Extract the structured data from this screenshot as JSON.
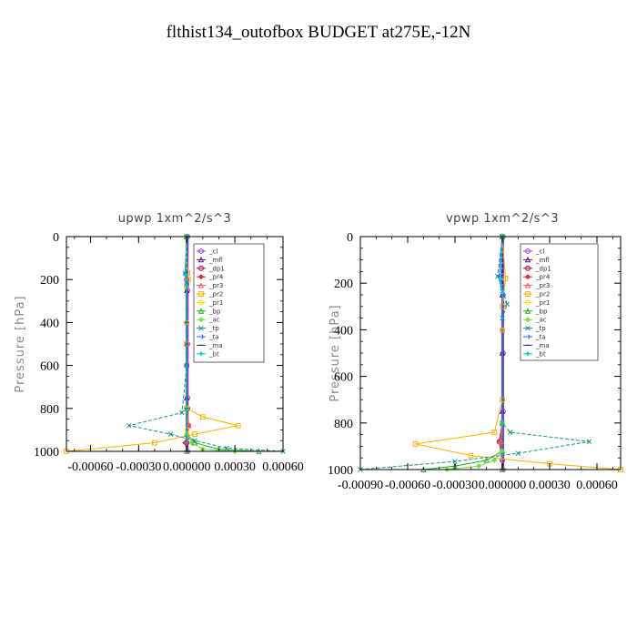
{
  "title": "flthist134_outofbox  BUDGET at275E,-12N",
  "legend": [
    "_cl",
    "_mfl",
    "_dp1",
    "_pr4",
    "_pr3",
    "_pr2",
    "_pr1",
    "_bp",
    "_ac",
    "_tp",
    "_ta",
    "_ma",
    "_bt"
  ],
  "colors": {
    "_cl": "#9b30ff",
    "_mfl": "#6a0a8a",
    "_dp1": "#b0005a",
    "_pr4": "#e0303a",
    "_pr3": "#ff5a5a",
    "_pr2": "#ffb000",
    "_pr1": "#ffd800",
    "_bp": "#20b020",
    "_ac": "#80e040",
    "_tp": "#1a9090",
    "_ta": "#2a60ff",
    "_ma": "#3030a0",
    "_bt": "#00d0d0"
  },
  "chart_data": [
    {
      "type": "line",
      "title": "upwp   1xm^2/s^3",
      "xlabel": "",
      "ylabel": "Pressure [hPa]",
      "xlim": [
        -0.00075,
        0.0006
      ],
      "ylim": [
        1000,
        0
      ],
      "xticks": [
        "-0.00060",
        "-0.00030",
        "0.000000",
        "0.00030",
        "0.00060"
      ],
      "xtick_values": [
        -0.0006,
        -0.0003,
        0.0,
        0.0003,
        0.0006
      ],
      "yticks": [
        "0",
        "200",
        "400",
        "600",
        "800",
        "1000"
      ],
      "ytick_values": [
        0,
        200,
        400,
        600,
        800,
        1000
      ],
      "legend_position": "top-right",
      "series": [
        {
          "name": "_cl",
          "x": [
            5e-06,
            5e-06,
            5e-06,
            5e-06,
            5e-06
          ],
          "y": [
            0,
            250,
            500,
            750,
            1000
          ]
        },
        {
          "name": "_mfl",
          "x": [
            0.0,
            0.0,
            0.0,
            0.0,
            0.0
          ],
          "y": [
            0,
            250,
            500,
            750,
            1000
          ]
        },
        {
          "name": "_dp1",
          "x": [
            0.0,
            0.0,
            0.0,
            0.0,
            5e-06,
            1e-05,
            0.0,
            0.0
          ],
          "y": [
            0,
            200,
            400,
            600,
            800,
            880,
            960,
            1000
          ]
        },
        {
          "name": "_pr4",
          "x": [
            0.0,
            0.0,
            0.0,
            8e-06,
            -1e-05,
            0.0
          ],
          "y": [
            0,
            400,
            800,
            880,
            960,
            1000
          ]
        },
        {
          "name": "_pr3",
          "x": [
            0.0,
            0.0,
            0.0,
            1.2e-05,
            0.0
          ],
          "y": [
            0,
            400,
            800,
            880,
            1000
          ]
        },
        {
          "name": "_pr2",
          "x": [
            0.0,
            5e-06,
            1e-05,
            0.0,
            0.0,
            0.0,
            0.0001,
            0.00032,
            5e-05,
            -0.0002,
            -0.00075
          ],
          "y": [
            0,
            170,
            200,
            230,
            500,
            800,
            840,
            880,
            920,
            960,
            1000
          ]
        },
        {
          "name": "_pr1",
          "x": [
            0.0,
            0.0,
            0.0,
            0.0,
            0.0
          ],
          "y": [
            0,
            400,
            800,
            900,
            1000
          ]
        },
        {
          "name": "_bp",
          "x": [
            0.0,
            0.0,
            0.0,
            5e-05,
            0.0002,
            0.00045
          ],
          "y": [
            0,
            800,
            920,
            960,
            990,
            1000
          ]
        },
        {
          "name": "_ac",
          "x": [
            0.0,
            0.0,
            0.0,
            3e-05,
            0.0001,
            0.0003
          ],
          "y": [
            0,
            800,
            920,
            960,
            990,
            1000
          ]
        },
        {
          "name": "_tp",
          "x": [
            0.0,
            -1e-05,
            0.0,
            0.0,
            -3e-05,
            -0.00036,
            -0.0001,
            5e-05,
            0.00025,
            0.0006
          ],
          "y": [
            0,
            170,
            220,
            600,
            820,
            880,
            920,
            950,
            985,
            1000
          ]
        },
        {
          "name": "_ta",
          "x": [
            0.0,
            -1e-05,
            0.0,
            0.0,
            0.0
          ],
          "y": [
            0,
            170,
            220,
            600,
            1000
          ]
        },
        {
          "name": "_ma",
          "x": [
            0.0,
            0.0,
            0.0,
            0.0
          ],
          "y": [
            0,
            400,
            800,
            1000
          ]
        },
        {
          "name": "_bt",
          "x": [
            0.0,
            -8e-06,
            0.0,
            0.0
          ],
          "y": [
            0,
            180,
            230,
            1000
          ]
        }
      ]
    },
    {
      "type": "line",
      "title": "vpwp   1xm^2/s^3",
      "xlabel": "",
      "ylabel": "Pressure [hPa]",
      "xlim": [
        -0.0009,
        0.00075
      ],
      "ylim": [
        1000,
        0
      ],
      "xticks": [
        "-0.00090",
        "-0.00060",
        "-0.00030",
        "0.000000",
        "0.00030",
        "0.00060"
      ],
      "xtick_values": [
        -0.0009,
        -0.0006,
        -0.0003,
        0.0,
        0.0003,
        0.0006
      ],
      "yticks": [
        "0",
        "200",
        "400",
        "600",
        "800",
        "1000"
      ],
      "ytick_values": [
        0,
        200,
        400,
        600,
        800,
        1000
      ],
      "legend_position": "top-right",
      "series": [
        {
          "name": "_cl",
          "x": [
            5e-06,
            5e-06,
            5e-06,
            5e-06,
            5e-06
          ],
          "y": [
            0,
            250,
            500,
            750,
            1000
          ]
        },
        {
          "name": "_mfl",
          "x": [
            0.0,
            0.0,
            0.0,
            0.0,
            0.0
          ],
          "y": [
            0,
            250,
            500,
            750,
            1000
          ]
        },
        {
          "name": "_dp1",
          "x": [
            0.0,
            0.0,
            0.0,
            -2e-05,
            0.0,
            0.0
          ],
          "y": [
            0,
            400,
            800,
            880,
            960,
            1000
          ]
        },
        {
          "name": "_pr4",
          "x": [
            0.0,
            0.0,
            0.0,
            -1.5e-05,
            0.0
          ],
          "y": [
            0,
            400,
            800,
            880,
            1000
          ]
        },
        {
          "name": "_pr3",
          "x": [
            0.0,
            0.0,
            0.0,
            -1e-05,
            0.0
          ],
          "y": [
            0,
            400,
            800,
            880,
            1000
          ]
        },
        {
          "name": "_pr2",
          "x": [
            0.0,
            2e-05,
            0.0,
            0.0,
            -5e-05,
            -0.00055,
            -0.0002,
            0.0003,
            0.00075
          ],
          "y": [
            0,
            180,
            300,
            700,
            840,
            890,
            940,
            975,
            1000
          ]
        },
        {
          "name": "_pr1",
          "x": [
            0.0,
            0.0,
            0.0,
            0.0
          ],
          "y": [
            0,
            400,
            800,
            1000
          ]
        },
        {
          "name": "_bp",
          "x": [
            0.0,
            0.0,
            0.0,
            -0.0001,
            -0.0003,
            -0.0005
          ],
          "y": [
            0,
            800,
            920,
            960,
            985,
            1000
          ]
        },
        {
          "name": "_ac",
          "x": [
            0.0,
            0.0,
            0.0,
            -5e-05,
            -0.00015,
            -0.00035
          ],
          "y": [
            0,
            800,
            920,
            960,
            985,
            1000
          ]
        },
        {
          "name": "_tp",
          "x": [
            0.0,
            -3e-05,
            0.0,
            3e-05,
            0.0,
            0.0,
            5e-05,
            0.00055,
            0.0001,
            -0.0003,
            -0.0009
          ],
          "y": [
            0,
            170,
            220,
            290,
            350,
            800,
            840,
            880,
            930,
            965,
            1000
          ]
        },
        {
          "name": "_ta",
          "x": [
            0.0,
            -2e-05,
            0.0,
            0.0
          ],
          "y": [
            0,
            170,
            250,
            1000
          ]
        },
        {
          "name": "_ma",
          "x": [
            0.0,
            0.0,
            0.0
          ],
          "y": [
            0,
            500,
            1000
          ]
        },
        {
          "name": "_bt",
          "x": [
            0.0,
            -1e-05,
            0.0,
            0.0
          ],
          "y": [
            0,
            180,
            240,
            1000
          ]
        }
      ]
    }
  ]
}
